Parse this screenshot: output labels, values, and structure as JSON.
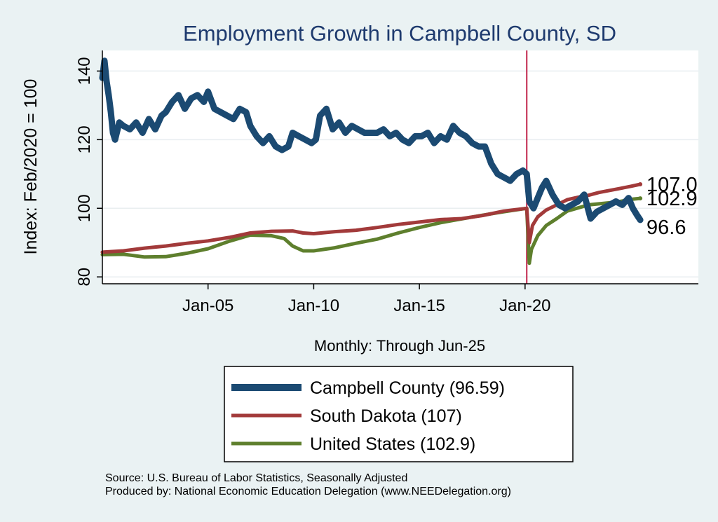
{
  "chart_data": {
    "type": "line",
    "title": "Employment Growth in Campbell  County, SD",
    "xlabel": "Monthly: Through Jun-25",
    "ylabel": "Index: Feb/2020 = 100",
    "ylim": [
      78,
      146
    ],
    "xlim": [
      2000.0,
      2028.2
    ],
    "yticks": [
      80,
      100,
      120,
      140
    ],
    "xticks": [
      {
        "value": 2005.0,
        "label": "Jan-05"
      },
      {
        "value": 2010.0,
        "label": "Jan-10"
      },
      {
        "value": 2015.0,
        "label": "Jan-15"
      },
      {
        "value": 2020.0,
        "label": "Jan-20"
      }
    ],
    "grid": true,
    "reference_line": {
      "x": 2020.08,
      "color": "#c0234a"
    },
    "colors": {
      "campbell": "#1b4a72",
      "south_dakota": "#a23a3a",
      "united_states": "#5e7f2d",
      "background": "#eaf2f3",
      "title": "#1e3a6e"
    },
    "series": [
      {
        "name": "Campbell  County",
        "legend": "Campbell  County (96.59)",
        "end_label": "96.6",
        "color": "#1b4a72",
        "x": [
          2000.0,
          2000.1,
          2000.2,
          2000.3,
          2000.4,
          2000.5,
          2000.6,
          2000.8,
          2001.0,
          2001.3,
          2001.6,
          2001.9,
          2002.2,
          2002.5,
          2002.8,
          2003.0,
          2003.3,
          2003.6,
          2003.9,
          2004.2,
          2004.5,
          2004.8,
          2005.0,
          2005.3,
          2005.6,
          2005.9,
          2006.2,
          2006.5,
          2006.8,
          2007.0,
          2007.3,
          2007.6,
          2007.9,
          2008.2,
          2008.5,
          2008.8,
          2009.0,
          2009.3,
          2009.6,
          2009.9,
          2010.1,
          2010.3,
          2010.6,
          2010.9,
          2011.2,
          2011.5,
          2011.8,
          2012.1,
          2012.4,
          2012.7,
          2013.0,
          2013.3,
          2013.6,
          2013.9,
          2014.2,
          2014.5,
          2014.8,
          2015.1,
          2015.4,
          2015.7,
          2016.0,
          2016.3,
          2016.6,
          2016.9,
          2017.2,
          2017.5,
          2017.8,
          2018.1,
          2018.4,
          2018.7,
          2019.0,
          2019.3,
          2019.6,
          2019.9,
          2020.08,
          2020.2,
          2020.4,
          2020.6,
          2020.8,
          2021.0,
          2021.3,
          2021.6,
          2021.9,
          2022.2,
          2022.5,
          2022.8,
          2023.1,
          2023.4,
          2023.7,
          2024.0,
          2024.3,
          2024.6,
          2024.9,
          2025.1,
          2025.3,
          2025.45
        ],
        "values": [
          138,
          143,
          137,
          133,
          128,
          122,
          120,
          125,
          124,
          123,
          125,
          122,
          126,
          123,
          127,
          128,
          131,
          133,
          129,
          132,
          133,
          131,
          134,
          129,
          128,
          127,
          126,
          129,
          128,
          124,
          121,
          119,
          121,
          118,
          117,
          118,
          122,
          121,
          120,
          119,
          120,
          127,
          129,
          123,
          125,
          122,
          124,
          123,
          122,
          122,
          122,
          123,
          121,
          122,
          120,
          119,
          121,
          121,
          122,
          119,
          121,
          120,
          124,
          122,
          121,
          119,
          118,
          118,
          113,
          110,
          109,
          108,
          110,
          111,
          110,
          102,
          100,
          103,
          106,
          108,
          104,
          101,
          100,
          101,
          102,
          104,
          97,
          99,
          100,
          101,
          102,
          101,
          103,
          100,
          98,
          96.6
        ]
      },
      {
        "name": "South Dakota",
        "legend": "South Dakota (107)",
        "end_label": "107.0",
        "color": "#a23a3a",
        "x": [
          2000.0,
          2001.0,
          2002.0,
          2003.0,
          2004.0,
          2005.0,
          2006.0,
          2007.0,
          2008.0,
          2009.0,
          2009.5,
          2010.0,
          2011.0,
          2012.0,
          2013.0,
          2014.0,
          2015.0,
          2016.0,
          2017.0,
          2018.0,
          2019.0,
          2020.08,
          2020.2,
          2020.35,
          2020.6,
          2021.0,
          2021.5,
          2022.0,
          2022.5,
          2023.0,
          2023.5,
          2024.0,
          2024.5,
          2025.0,
          2025.45
        ],
        "values": [
          87.2,
          87.6,
          88.4,
          89.0,
          89.8,
          90.5,
          91.5,
          92.8,
          93.3,
          93.4,
          92.8,
          92.6,
          93.2,
          93.6,
          94.4,
          95.3,
          96.0,
          96.7,
          97.0,
          97.9,
          99.2,
          100.0,
          90.0,
          95.0,
          97.5,
          99.5,
          101.0,
          102.5,
          103.2,
          103.8,
          104.6,
          105.2,
          105.8,
          106.4,
          107.0
        ]
      },
      {
        "name": "United States",
        "legend": "United States (102.9)",
        "end_label": "102.9",
        "color": "#5e7f2d",
        "x": [
          2000.0,
          2001.0,
          2002.0,
          2003.0,
          2004.0,
          2005.0,
          2006.0,
          2007.0,
          2008.0,
          2008.6,
          2009.0,
          2009.5,
          2010.0,
          2011.0,
          2012.0,
          2013.0,
          2014.0,
          2015.0,
          2016.0,
          2017.0,
          2018.0,
          2019.0,
          2020.08,
          2020.2,
          2020.3,
          2020.6,
          2021.0,
          2021.5,
          2022.0,
          2022.5,
          2023.0,
          2023.5,
          2024.0,
          2024.5,
          2025.0,
          2025.45
        ],
        "values": [
          86.5,
          86.6,
          85.8,
          85.9,
          86.9,
          88.2,
          90.4,
          92.2,
          92.0,
          91.2,
          89.0,
          87.6,
          87.6,
          88.5,
          89.8,
          91.0,
          92.8,
          94.4,
          95.8,
          96.9,
          98.0,
          99.0,
          100.0,
          84.0,
          88.0,
          92.0,
          95.0,
          97.0,
          99.2,
          100.1,
          101.0,
          101.3,
          101.6,
          102.0,
          102.6,
          102.9
        ]
      }
    ]
  },
  "notes": {
    "source": "Source: U.S. Bureau of Labor Statistics, Seasonally Adjusted",
    "produced": "Produced by: National Economic Education Delegation (www.NEEDelegation.org)"
  }
}
